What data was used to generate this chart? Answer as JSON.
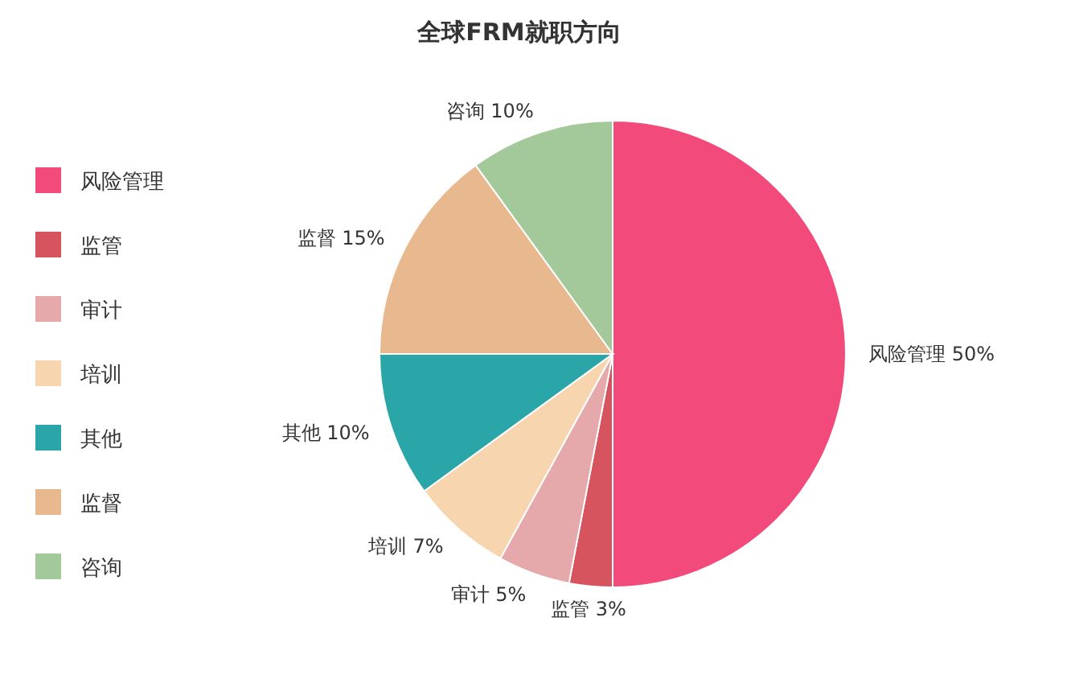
{
  "chart_data": {
    "type": "pie",
    "title": "全球FRM就职方向",
    "categories": [
      "风险管理",
      "监管",
      "审计",
      "培训",
      "其他",
      "监督",
      "咨询"
    ],
    "values": [
      50,
      3,
      5,
      7,
      10,
      15,
      10
    ],
    "colors": [
      "#f24b7b",
      "#d6545e",
      "#e5a9ab",
      "#f7d5af",
      "#2aa6a9",
      "#e8b98f",
      "#a3c899"
    ],
    "value_labels": [
      "风险管理 50%",
      "监管 3%",
      "审计 5%",
      "培训 7%",
      "其他 10%",
      "监督 15%",
      "咨询 10%"
    ],
    "legend": "left"
  }
}
